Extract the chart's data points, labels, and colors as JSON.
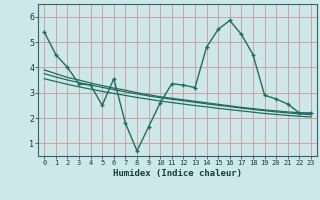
{
  "xlabel": "Humidex (Indice chaleur)",
  "ylabel": "",
  "bg_color": "#cce8e8",
  "grid_color": "#d4a0a0",
  "line_color": "#1a7060",
  "xlim": [
    -0.5,
    23.5
  ],
  "ylim": [
    0.5,
    6.5
  ],
  "yticks": [
    1,
    2,
    3,
    4,
    5,
    6
  ],
  "xticks": [
    0,
    1,
    2,
    3,
    4,
    5,
    6,
    7,
    8,
    9,
    10,
    11,
    12,
    13,
    14,
    15,
    16,
    17,
    18,
    19,
    20,
    21,
    22,
    23
  ],
  "series1_x": [
    0,
    1,
    2,
    3,
    4,
    5,
    6,
    7,
    8,
    9,
    10,
    11,
    12,
    13,
    14,
    15,
    16,
    17,
    18,
    19,
    20,
    21,
    22,
    23
  ],
  "series1_y": [
    5.4,
    4.5,
    4.0,
    3.35,
    3.3,
    2.5,
    3.55,
    1.8,
    0.7,
    1.65,
    2.6,
    3.35,
    3.3,
    3.2,
    4.8,
    5.5,
    5.85,
    5.3,
    4.5,
    2.9,
    2.75,
    2.55,
    2.2,
    2.2
  ],
  "series2_x": [
    0,
    1,
    2,
    3,
    4,
    5,
    6,
    7,
    8,
    9,
    10,
    11,
    12,
    13,
    14,
    15,
    16,
    17,
    18,
    19,
    20,
    21,
    22,
    23
  ],
  "series2_y": [
    3.9,
    3.75,
    3.6,
    3.5,
    3.38,
    3.28,
    3.18,
    3.1,
    3.0,
    2.92,
    2.84,
    2.78,
    2.72,
    2.66,
    2.6,
    2.54,
    2.48,
    2.42,
    2.37,
    2.32,
    2.28,
    2.24,
    2.21,
    2.18
  ],
  "series3_x": [
    0,
    1,
    2,
    3,
    4,
    5,
    6,
    7,
    8,
    9,
    10,
    11,
    12,
    13,
    14,
    15,
    16,
    17,
    18,
    19,
    20,
    21,
    22,
    23
  ],
  "series3_y": [
    3.75,
    3.62,
    3.5,
    3.4,
    3.3,
    3.21,
    3.12,
    3.03,
    2.95,
    2.87,
    2.8,
    2.74,
    2.68,
    2.62,
    2.56,
    2.5,
    2.45,
    2.39,
    2.34,
    2.29,
    2.24,
    2.2,
    2.16,
    2.13
  ],
  "series4_x": [
    0,
    1,
    2,
    3,
    4,
    5,
    6,
    7,
    8,
    9,
    10,
    11,
    12,
    13,
    14,
    15,
    16,
    17,
    18,
    19,
    20,
    21,
    22,
    23
  ],
  "series4_y": [
    3.55,
    3.44,
    3.33,
    3.23,
    3.14,
    3.05,
    2.97,
    2.89,
    2.81,
    2.74,
    2.67,
    2.61,
    2.55,
    2.49,
    2.44,
    2.38,
    2.33,
    2.28,
    2.23,
    2.18,
    2.14,
    2.1,
    2.07,
    2.04
  ]
}
